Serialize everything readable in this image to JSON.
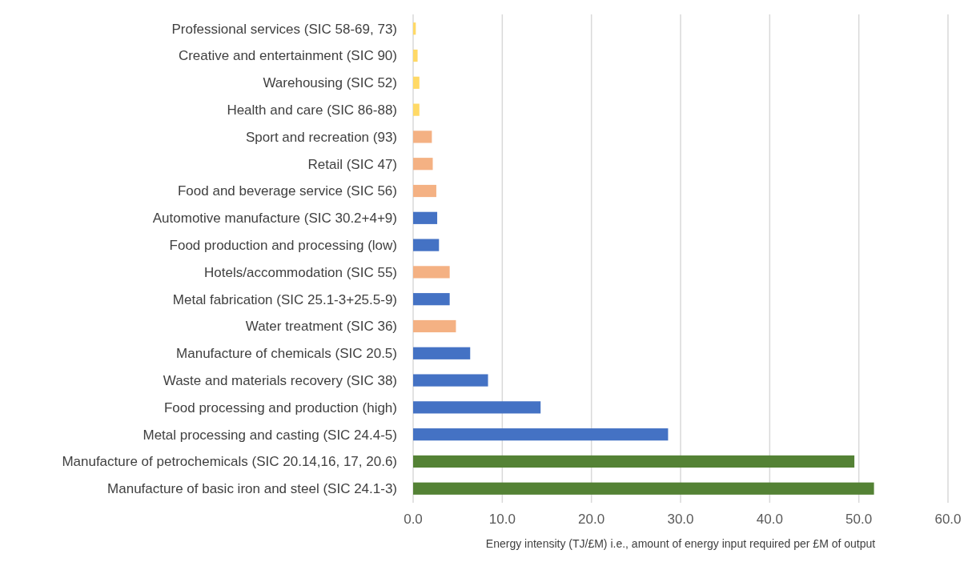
{
  "chart_data": {
    "type": "bar",
    "orientation": "horizontal",
    "xlabel": "Energy intensity (TJ/£M) i.e., amount of energy input required per £M of output",
    "categories": [
      "Professional services (SIC 58-69, 73)",
      "Creative and entertainment (SIC 90)",
      "Warehousing (SIC 52)",
      "Health and care (SIC 86-88)",
      "Sport and recreation (93)",
      "Retail (SIC 47)",
      "Food and beverage service (SIC 56)",
      "Automotive manufacture (SIC 30.2+4+9)",
      "Food production and processing (low)",
      "Hotels/accommodation (SIC 55)",
      "Metal fabrication (SIC 25.1-3+25.5-9)",
      "Water treatment (SIC 36)",
      "Manufacture of chemicals (SIC 20.5)",
      "Waste and materials recovery (SIC 38)",
      "Food processing and production (high)",
      "Metal processing and casting (SIC 24.4-5)",
      "Manufacture of petrochemicals (SIC 20.14,16, 17, 20.6)",
      "Manufacture of basic iron and steel (SIC 24.1-3)"
    ],
    "values": [
      0.3,
      0.5,
      0.7,
      0.7,
      2.1,
      2.2,
      2.6,
      2.7,
      2.9,
      4.1,
      4.1,
      4.8,
      6.4,
      8.4,
      14.3,
      28.6,
      49.5,
      51.7
    ],
    "colors": [
      "#ffd966",
      "#ffd966",
      "#ffd966",
      "#ffd966",
      "#f4b183",
      "#f4b183",
      "#f4b183",
      "#4472c4",
      "#4472c4",
      "#f4b183",
      "#4472c4",
      "#f4b183",
      "#4472c4",
      "#4472c4",
      "#4472c4",
      "#4472c4",
      "#548235",
      "#548235"
    ],
    "xlim": [
      0,
      60
    ],
    "xticks": [
      {
        "value": 0,
        "label": "0.0"
      },
      {
        "value": 10,
        "label": "10.0"
      },
      {
        "value": 20,
        "label": "20.0"
      },
      {
        "value": 30,
        "label": "30.0"
      },
      {
        "value": 40,
        "label": "40.0"
      },
      {
        "value": 50,
        "label": "50.0"
      },
      {
        "value": 60,
        "label": "60.0"
      }
    ],
    "grid": "x"
  }
}
